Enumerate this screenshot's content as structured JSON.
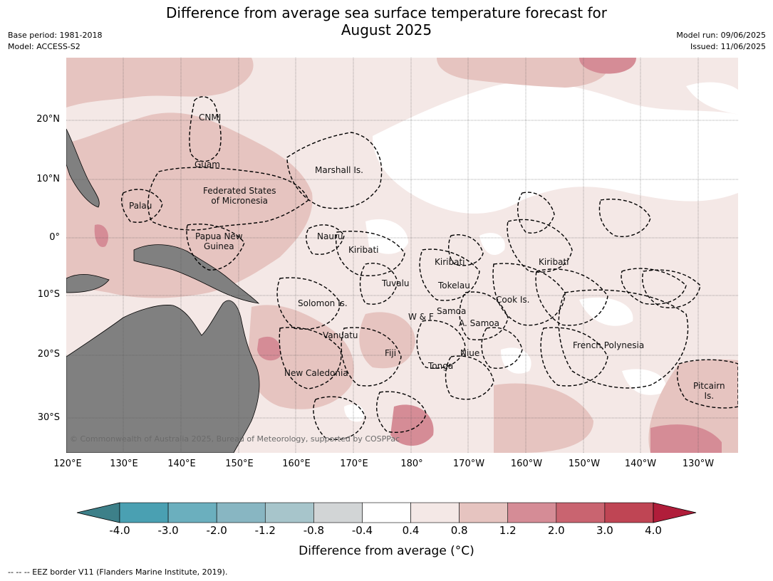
{
  "title": {
    "line1": "Difference from average sea surface temperature forecast for",
    "line2": "August 2025"
  },
  "meta_left": {
    "base_period": "Base period: 1981-2018",
    "model": "Model: ACCESS-S2"
  },
  "meta_right": {
    "model_run": "Model run: 09/06/2025",
    "issued": "Issued: 11/06/2025"
  },
  "lat_labels": [
    "20°N",
    "10°N",
    "0°",
    "10°S",
    "20°S",
    "30°S"
  ],
  "lon_labels": [
    "120°E",
    "130°E",
    "140°E",
    "150°E",
    "160°E",
    "170°E",
    "180°",
    "170°W",
    "160°W",
    "150°W",
    "140°W",
    "130°W"
  ],
  "regions": {
    "cnmi": "CNMI",
    "guam": "Guam",
    "marshall": "Marshall Is.",
    "fsm": "Federated States\nof Micronesia",
    "palau": "Palau",
    "png": "Papua New\nGuinea",
    "nauru": "Nauru",
    "kiribati_w": "Kiribati",
    "kiribati_c": "Kiribati",
    "kiribati_e": "Kiribati",
    "tuvalu": "Tuvalu",
    "tokelau": "Tokelau",
    "solomon": "Solomon Is.",
    "samoa": "Samoa",
    "wf": "W & F",
    "am_samoa": "A. Samoa",
    "cook": "Cook Is.",
    "vanuatu": "Vanuatu",
    "fiji": "Fiji",
    "niue": "Niue",
    "tonga": "Tonga",
    "french_polynesia": "French Polynesia",
    "new_caledonia": "New Caledonia",
    "pitcairn": "Pitcairn\nIs."
  },
  "copyright": "© Commonwealth of Australia 2025, Bureau of Meteorology, supported by COSPPac",
  "colorbar": {
    "ticks": [
      "-4.0",
      "-3.0",
      "-2.0",
      "-1.2",
      "-0.8",
      "-0.4",
      "0.4",
      "0.8",
      "1.2",
      "2.0",
      "3.0",
      "4.0"
    ],
    "colors": [
      "#3d8089",
      "#4aa0b2",
      "#6bafbe",
      "#88b6c2",
      "#a7c5cb",
      "#d2d5d6",
      "#ffffff",
      "#f4e8e6",
      "#e6c4c0",
      "#d58c96",
      "#c96470",
      "#bf4554",
      "#b01d3a"
    ],
    "label": "Difference from average (°C)"
  },
  "eez_note": "-- -- -- EEZ border V11 (Flanders Marine Institute, 2019)."
}
